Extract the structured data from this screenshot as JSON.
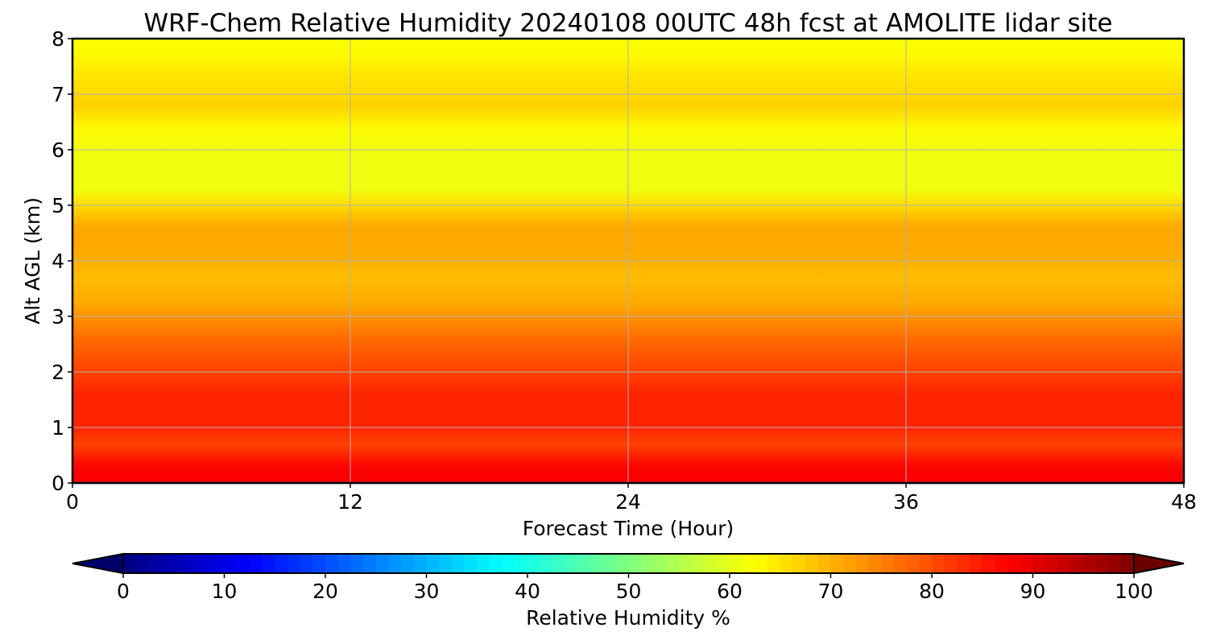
{
  "chart_data": {
    "type": "heatmap",
    "title": "WRF-Chem Relative Humidity 20240108 00UTC 48h fcst at AMOLITE lidar site",
    "xlabel": "Forecast Time (Hour)",
    "ylabel": "Alt AGL (km)",
    "xlim": [
      0,
      48
    ],
    "ylim": [
      0,
      8
    ],
    "x_ticks": [
      0,
      12,
      24,
      36,
      48
    ],
    "y_ticks": [
      0,
      1,
      2,
      3,
      4,
      5,
      6,
      7,
      8
    ],
    "grid": true,
    "profile_note_free": true,
    "rh_profile": [
      {
        "alt": 0.0,
        "rh": 88
      },
      {
        "alt": 0.25,
        "rh": 88
      },
      {
        "alt": 0.45,
        "rh": 85
      },
      {
        "alt": 0.7,
        "rh": 81
      },
      {
        "alt": 1.0,
        "rh": 84
      },
      {
        "alt": 1.6,
        "rh": 84
      },
      {
        "alt": 2.0,
        "rh": 81
      },
      {
        "alt": 2.6,
        "rh": 77
      },
      {
        "alt": 3.2,
        "rh": 71
      },
      {
        "alt": 3.7,
        "rh": 69
      },
      {
        "alt": 4.2,
        "rh": 71
      },
      {
        "alt": 4.6,
        "rh": 71
      },
      {
        "alt": 5.0,
        "rh": 66
      },
      {
        "alt": 5.3,
        "rh": 61
      },
      {
        "alt": 6.0,
        "rh": 61
      },
      {
        "alt": 6.4,
        "rh": 63
      },
      {
        "alt": 6.8,
        "rh": 67
      },
      {
        "alt": 7.3,
        "rh": 65
      },
      {
        "alt": 7.7,
        "rh": 63
      },
      {
        "alt": 8.0,
        "rh": 62
      }
    ],
    "colorbar": {
      "label": "Relative Humidity %",
      "range": [
        0,
        100
      ],
      "ticks": [
        0,
        10,
        20,
        30,
        40,
        50,
        60,
        70,
        80,
        90,
        100
      ],
      "extend": "both",
      "colormap": "jet"
    }
  }
}
